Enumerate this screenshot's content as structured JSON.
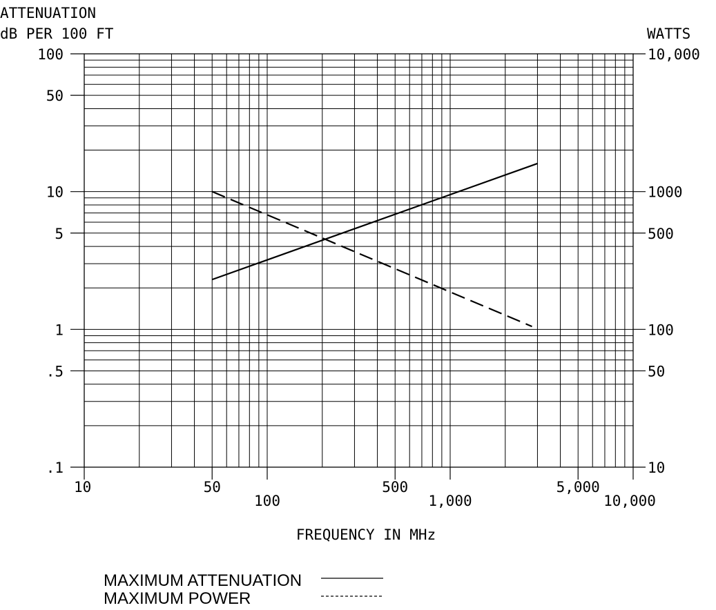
{
  "chart_data": {
    "type": "line",
    "left_axis_title": [
      "ATTENUATION",
      "dB PER 100 FT"
    ],
    "right_axis_title": "WATTS",
    "xlabel": "FREQUENCY IN MHz",
    "x_scale": "log",
    "xlim": [
      10,
      10000
    ],
    "left_scale": "log",
    "left_ylim": [
      0.1,
      100
    ],
    "right_scale": "log",
    "right_ylim": [
      10,
      10000
    ],
    "x_tick_labels": [
      {
        "value": 10,
        "label": "10"
      },
      {
        "value": 50,
        "label": "50"
      },
      {
        "value": 100,
        "label": "100"
      },
      {
        "value": 500,
        "label": "500"
      },
      {
        "value": 1000,
        "label": "1,000"
      },
      {
        "value": 5000,
        "label": "5,000"
      },
      {
        "value": 10000,
        "label": "10,000"
      }
    ],
    "left_tick_labels": [
      {
        "value": 100,
        "label": "100"
      },
      {
        "value": 50,
        "label": "50"
      },
      {
        "value": 10,
        "label": "10"
      },
      {
        "value": 5,
        "label": "5"
      },
      {
        "value": 1,
        "label": "1"
      },
      {
        "value": 0.5,
        "label": ".5"
      },
      {
        "value": 0.1,
        "label": ".1"
      }
    ],
    "right_tick_labels": [
      {
        "value": 10000,
        "label": "10,000"
      },
      {
        "value": 1000,
        "label": "1000"
      },
      {
        "value": 500,
        "label": "500"
      },
      {
        "value": 100,
        "label": "100"
      },
      {
        "value": 50,
        "label": "50"
      },
      {
        "value": 10,
        "label": "10"
      }
    ],
    "grid": true,
    "series": [
      {
        "name": "MAXIMUM ATTENUATION",
        "axis": "left",
        "style": "solid",
        "x": [
          50,
          3000
        ],
        "y": [
          2.3,
          16
        ]
      },
      {
        "name": "MAXIMUM POWER",
        "axis": "right",
        "style": "dashed",
        "x": [
          50,
          2800
        ],
        "y": [
          1000,
          105
        ]
      }
    ],
    "legend": {
      "position": "bottom",
      "entries": [
        "MAXIMUM ATTENUATION",
        "MAXIMUM POWER"
      ]
    }
  }
}
